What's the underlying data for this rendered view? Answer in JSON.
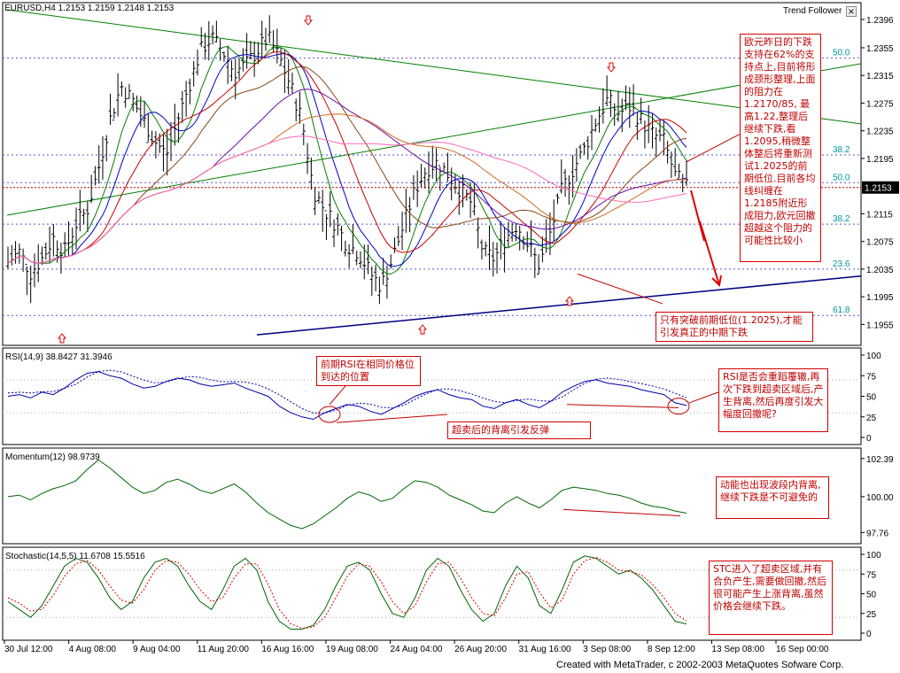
{
  "header": {
    "symbol_line": "EURUSD,H4  1.2153 1.2159 1.2148 1.2153",
    "indicator_name": "Trend Follower",
    "close_symbol": "×"
  },
  "footer": {
    "credit": "Created with MetaTrader, c 2002-2003 MetaQuotes Sofware Corp."
  },
  "colors": {
    "price": "#000000",
    "rsi": "#0000aa",
    "momentum": "#006600",
    "stoch_main": "#006600",
    "stoch_signal": "#dd0000",
    "trend_green": "#008000",
    "trend_blue": "#000080",
    "fib": "#000099",
    "annotation": "#c00000"
  },
  "chart_data": [
    {
      "type": "candlestick",
      "panel": "price",
      "yaxis_ticks": [
        "1.2396",
        "1.2355",
        "1.2315",
        "1.2275",
        "1.2235",
        "1.2195",
        "1.2153",
        "1.2115",
        "1.2075",
        "1.2035",
        "1.1995",
        "1.1955"
      ],
      "ylim": [
        1.1935,
        1.241
      ],
      "current_price": "1.2153",
      "x_ticks": [
        "30 Jul 12:00",
        "4 Aug 08:00",
        "9 Aug 04:00",
        "11 Aug 20:00",
        "16 Aug 16:00",
        "19 Aug 08:00",
        "24 Aug 04:00",
        "26 Aug 20:00",
        "31 Aug 16:00",
        "3 Sep 08:00",
        "8 Sep 12:00",
        "13 Sep 08:00",
        "16 Sep 00:00"
      ],
      "close_path": [
        1.2045,
        1.206,
        1.203,
        1.205,
        1.208,
        1.206,
        1.21,
        1.212,
        1.218,
        1.225,
        1.23,
        1.228,
        1.225,
        1.222,
        1.22,
        1.225,
        1.23,
        1.235,
        1.237,
        1.235,
        1.232,
        1.233,
        1.235,
        1.237,
        1.234,
        1.23,
        1.225,
        1.215,
        1.212,
        1.21,
        1.207,
        1.206,
        1.203,
        1.201,
        1.205,
        1.21,
        1.215,
        1.218,
        1.219,
        1.217,
        1.215,
        1.213,
        1.206,
        1.205,
        1.208,
        1.21,
        1.207,
        1.204,
        1.209,
        1.215,
        1.218,
        1.221,
        1.225,
        1.228,
        1.226,
        1.227,
        1.225,
        1.223,
        1.222,
        1.217,
        1.2153
      ],
      "fib_levels": [
        {
          "label": "50.0",
          "price": 1.234
        },
        {
          "label": "38.2",
          "price": 1.22
        },
        {
          "label": "50.0",
          "price": 1.216
        },
        {
          "label": "38.2",
          "price": 1.21
        },
        {
          "label": "23.6",
          "price": 1.2035
        },
        {
          "label": "61.8",
          "price": 1.1968
        }
      ]
    },
    {
      "type": "line",
      "panel": "rsi",
      "title": "RSI(14,9) 38.8427 31.3946",
      "yaxis_ticks": [
        "100",
        "75",
        "50",
        "25",
        "0"
      ],
      "ylim": [
        0,
        100
      ],
      "values": [
        50,
        52,
        48,
        55,
        52,
        60,
        70,
        78,
        80,
        75,
        72,
        65,
        60,
        62,
        68,
        72,
        70,
        65,
        62,
        64,
        66,
        60,
        55,
        50,
        38,
        30,
        25,
        22,
        30,
        35,
        40,
        38,
        32,
        28,
        35,
        42,
        50,
        55,
        58,
        52,
        48,
        46,
        38,
        35,
        42,
        46,
        40,
        36,
        44,
        55,
        62,
        68,
        70,
        66,
        64,
        62,
        58,
        55,
        52,
        42,
        39
      ]
    },
    {
      "type": "line",
      "panel": "momentum",
      "title": "Momentum(12) 98.9739",
      "yaxis_ticks": [
        "102.39",
        "100.00",
        "97.76"
      ],
      "ylim": [
        97.5,
        102.6
      ],
      "values": [
        100.0,
        100.1,
        99.8,
        100.2,
        100.5,
        100.7,
        101.0,
        101.7,
        102.3,
        101.8,
        101.2,
        100.6,
        100.2,
        100.4,
        100.9,
        101.1,
        100.8,
        100.4,
        100.2,
        100.5,
        100.8,
        100.3,
        99.6,
        99.0,
        98.6,
        98.2,
        98.0,
        98.3,
        98.8,
        99.3,
        99.9,
        100.3,
        100.1,
        99.7,
        99.9,
        100.5,
        101.0,
        100.9,
        100.6,
        100.1,
        99.8,
        99.5,
        99.1,
        99.0,
        99.6,
        100.0,
        99.6,
        99.3,
        99.8,
        100.4,
        100.6,
        100.5,
        100.4,
        100.2,
        100.1,
        99.9,
        99.6,
        99.4,
        99.3,
        99.1,
        98.97
      ]
    },
    {
      "type": "line",
      "panel": "stochastic",
      "title": "Stochastic(14,5,5) 11.6708 15.5516",
      "yaxis_ticks": [
        "100",
        "75",
        "50",
        "25",
        "0"
      ],
      "ylim": [
        0,
        100
      ],
      "main": [
        40,
        30,
        20,
        35,
        60,
        85,
        95,
        90,
        70,
        45,
        30,
        40,
        70,
        90,
        95,
        85,
        60,
        40,
        30,
        55,
        85,
        95,
        80,
        40,
        15,
        5,
        5,
        10,
        30,
        60,
        85,
        90,
        80,
        50,
        25,
        20,
        45,
        80,
        95,
        85,
        55,
        30,
        15,
        25,
        60,
        85,
        70,
        35,
        25,
        55,
        90,
        98,
        95,
        85,
        75,
        80,
        70,
        55,
        35,
        15,
        11.67
      ],
      "signal": [
        45,
        38,
        28,
        30,
        48,
        72,
        88,
        92,
        80,
        60,
        42,
        38,
        55,
        80,
        92,
        90,
        75,
        55,
        40,
        45,
        70,
        88,
        88,
        62,
        30,
        12,
        6,
        8,
        20,
        45,
        72,
        88,
        85,
        65,
        40,
        25,
        35,
        65,
        88,
        90,
        70,
        45,
        25,
        22,
        45,
        75,
        78,
        52,
        32,
        42,
        75,
        92,
        96,
        90,
        80,
        78,
        74,
        62,
        45,
        25,
        15.55
      ]
    }
  ],
  "annotations": {
    "price_box": "欧元昨日的下跌支持在62%的支持点上,目前将形成颈形整理,上面的阻力在1.2170/85, 最高1.22,整理后继续下跌,看1.2095,稍微整体整后将重新测试1.2025的前期低位.目前各均线纠缠在1.2185附近形成阻力,欧元回撤超越这个阻力的可能性比较小",
    "low_box": "只有突破前期低位(1.2025),才能引发真正的中期下跌",
    "rsi_prev": "前期RSI在相同价格位到达的位置",
    "rsi_divergence": "超卖后的背离引发反弹",
    "rsi_right": "RSI是否会重蹈覆辙,再次下跌到超卖区域后,产生背离,然后再度引发大幅度回撤呢?",
    "momentum_box": "动能也出现波段内背离,继续下跌是不可避免的",
    "stoch_box": "STC进入了超卖区域,并有合负产生,需要做回撤,然后很可能产生上涨背离,虽然价格会继续下跌。"
  }
}
